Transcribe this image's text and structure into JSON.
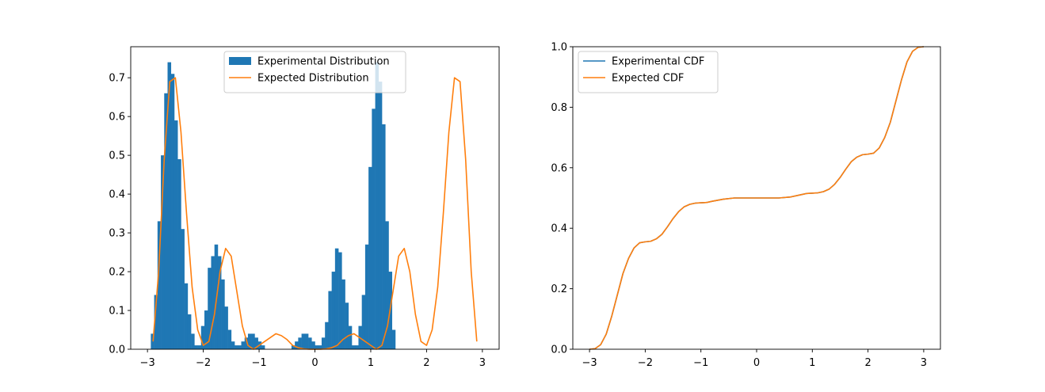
{
  "chart_data": [
    {
      "type": "bar",
      "title": "",
      "xlabel": "",
      "ylabel": "",
      "xlim": [
        -3.3,
        3.3
      ],
      "ylim": [
        0,
        0.78
      ],
      "xticks": [
        -3,
        -2,
        -1,
        0,
        1,
        2,
        3
      ],
      "xtick_labels": [
        "−3",
        "−2",
        "−1",
        "0",
        "1",
        "2",
        "3"
      ],
      "yticks": [
        0.0,
        0.1,
        0.2,
        0.3,
        0.4,
        0.5,
        0.6,
        0.7
      ],
      "ytick_labels": [
        "0.0",
        "0.1",
        "0.2",
        "0.3",
        "0.4",
        "0.5",
        "0.6",
        "0.7"
      ],
      "grid": false,
      "legend_position": "top-center",
      "legend": [
        "Experimental Distribution",
        "Expected Distribution"
      ],
      "colors": {
        "histogram": "#1f77b4",
        "curve": "#ff7f0e"
      },
      "histogram": {
        "name": "Experimental Distribution",
        "bin_start": -2.94,
        "bin_width": 0.06,
        "values": [
          0.04,
          0.14,
          0.33,
          0.5,
          0.66,
          0.74,
          0.71,
          0.59,
          0.49,
          0.31,
          0.17,
          0.09,
          0.04,
          0.01,
          0.01,
          0.06,
          0.1,
          0.21,
          0.24,
          0.27,
          0.24,
          0.18,
          0.11,
          0.05,
          0.02,
          0.01,
          0.01,
          0.02,
          0.03,
          0.04,
          0.04,
          0.03,
          0.02,
          0.01,
          0.0,
          0.0,
          0.0,
          0.0,
          0.0,
          0.0,
          0.0,
          0.0,
          0.01,
          0.02,
          0.03,
          0.04,
          0.04,
          0.03,
          0.02,
          0.01,
          0.01,
          0.03,
          0.07,
          0.15,
          0.2,
          0.26,
          0.25,
          0.18,
          0.12,
          0.06,
          0.01,
          0.01,
          0.06,
          0.14,
          0.27,
          0.47,
          0.62,
          0.74,
          0.69,
          0.58,
          0.33,
          0.2,
          0.05
        ]
      },
      "series": [
        {
          "name": "Expected Distribution",
          "x": [
            -2.9,
            -2.8,
            -2.7,
            -2.6,
            -2.5,
            -2.4,
            -2.3,
            -2.2,
            -2.1,
            -2.0,
            -1.9,
            -1.8,
            -1.7,
            -1.6,
            -1.5,
            -1.4,
            -1.3,
            -1.2,
            -1.1,
            -1.0,
            -0.9,
            -0.8,
            -0.7,
            -0.6,
            -0.5,
            -0.4,
            -0.3,
            -0.2,
            -0.1,
            0.0,
            0.1,
            0.2,
            0.3,
            0.4,
            0.5,
            0.6,
            0.7,
            0.8,
            0.9,
            1.0,
            1.1,
            1.2,
            1.3,
            1.4,
            1.5,
            1.6,
            1.7,
            1.8,
            1.9,
            2.0,
            2.1,
            2.2,
            2.3,
            2.4,
            2.5,
            2.6,
            2.7,
            2.8,
            2.9
          ],
          "y": [
            0.02,
            0.2,
            0.49,
            0.69,
            0.7,
            0.56,
            0.35,
            0.16,
            0.05,
            0.01,
            0.02,
            0.09,
            0.2,
            0.26,
            0.24,
            0.15,
            0.06,
            0.01,
            0.0,
            0.01,
            0.02,
            0.03,
            0.04,
            0.035,
            0.025,
            0.01,
            0.004,
            0.001,
            0.0,
            0.0,
            0.0,
            0.001,
            0.004,
            0.01,
            0.025,
            0.035,
            0.04,
            0.03,
            0.02,
            0.01,
            0.0,
            0.01,
            0.06,
            0.15,
            0.24,
            0.26,
            0.2,
            0.09,
            0.02,
            0.01,
            0.05,
            0.16,
            0.35,
            0.56,
            0.7,
            0.69,
            0.49,
            0.2,
            0.02
          ]
        }
      ]
    },
    {
      "type": "line",
      "title": "",
      "xlabel": "",
      "ylabel": "",
      "xlim": [
        -3.3,
        3.3
      ],
      "ylim": [
        0,
        1.0
      ],
      "xticks": [
        -3,
        -2,
        -1,
        0,
        1,
        2,
        3
      ],
      "xtick_labels": [
        "−3",
        "−2",
        "−1",
        "0",
        "1",
        "2",
        "3"
      ],
      "yticks": [
        0.0,
        0.2,
        0.4,
        0.6,
        0.8,
        1.0
      ],
      "ytick_labels": [
        "0.0",
        "0.2",
        "0.4",
        "0.6",
        "0.8",
        "1.0"
      ],
      "grid": false,
      "legend_position": "top-left",
      "legend": [
        "Experimental CDF",
        "Expected CDF"
      ],
      "series": [
        {
          "name": "Experimental CDF",
          "color": "#1f77b4",
          "x": [
            -3.0,
            -2.9,
            -2.8,
            -2.7,
            -2.6,
            -2.5,
            -2.4,
            -2.3,
            -2.2,
            -2.1,
            -2.0,
            -1.9,
            -1.8,
            -1.7,
            -1.6,
            -1.5,
            -1.4,
            -1.3,
            -1.2,
            -1.1,
            -1.0,
            -0.9,
            -0.8,
            -0.6,
            -0.4,
            -0.2,
            0.0,
            0.2,
            0.4,
            0.6,
            0.8,
            0.9,
            1.0,
            1.1,
            1.2,
            1.3,
            1.4,
            1.5,
            1.6,
            1.7,
            1.8,
            1.9,
            2.0,
            2.1,
            2.2,
            2.3,
            2.4,
            2.5,
            2.6,
            2.7,
            2.8,
            2.9,
            3.0
          ],
          "y": [
            0.0,
            0.002,
            0.015,
            0.05,
            0.11,
            0.18,
            0.25,
            0.3,
            0.335,
            0.352,
            0.355,
            0.357,
            0.365,
            0.38,
            0.405,
            0.432,
            0.455,
            0.471,
            0.479,
            0.483,
            0.484,
            0.485,
            0.489,
            0.496,
            0.5,
            0.5,
            0.5,
            0.5,
            0.5,
            0.503,
            0.511,
            0.515,
            0.516,
            0.517,
            0.521,
            0.529,
            0.545,
            0.568,
            0.595,
            0.62,
            0.635,
            0.643,
            0.645,
            0.648,
            0.665,
            0.7,
            0.75,
            0.82,
            0.89,
            0.95,
            0.985,
            0.998,
            1.0
          ]
        },
        {
          "name": "Expected CDF",
          "color": "#ff7f0e",
          "x": [
            -3.0,
            -2.9,
            -2.8,
            -2.7,
            -2.6,
            -2.5,
            -2.4,
            -2.3,
            -2.2,
            -2.1,
            -2.0,
            -1.9,
            -1.8,
            -1.7,
            -1.6,
            -1.5,
            -1.4,
            -1.3,
            -1.2,
            -1.1,
            -1.0,
            -0.9,
            -0.8,
            -0.6,
            -0.4,
            -0.2,
            0.0,
            0.2,
            0.4,
            0.6,
            0.8,
            0.9,
            1.0,
            1.1,
            1.2,
            1.3,
            1.4,
            1.5,
            1.6,
            1.7,
            1.8,
            1.9,
            2.0,
            2.1,
            2.2,
            2.3,
            2.4,
            2.5,
            2.6,
            2.7,
            2.8,
            2.9,
            3.0
          ],
          "y": [
            0.0,
            0.002,
            0.015,
            0.05,
            0.11,
            0.18,
            0.25,
            0.3,
            0.335,
            0.352,
            0.355,
            0.357,
            0.365,
            0.38,
            0.405,
            0.432,
            0.455,
            0.471,
            0.479,
            0.483,
            0.484,
            0.485,
            0.489,
            0.496,
            0.5,
            0.5,
            0.5,
            0.5,
            0.5,
            0.503,
            0.511,
            0.515,
            0.516,
            0.517,
            0.521,
            0.529,
            0.545,
            0.568,
            0.595,
            0.62,
            0.635,
            0.643,
            0.645,
            0.648,
            0.665,
            0.7,
            0.75,
            0.82,
            0.89,
            0.95,
            0.985,
            0.998,
            1.0
          ]
        }
      ]
    }
  ]
}
